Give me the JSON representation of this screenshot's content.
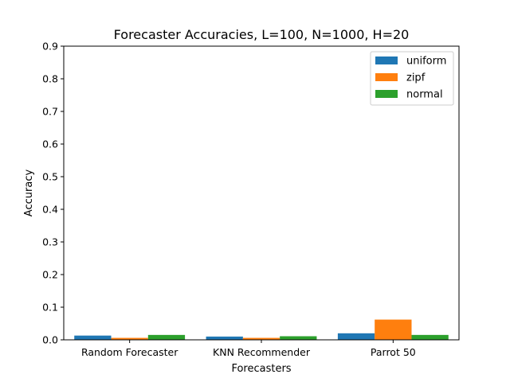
{
  "chart_data": {
    "type": "bar",
    "title": "Forecaster Accuracies, L=100, N=1000, H=20",
    "xlabel": "Forecasters",
    "ylabel": "Accuracy",
    "categories": [
      "Random Forecaster",
      "KNN Recommender",
      "Parrot 50"
    ],
    "series": [
      {
        "name": "uniform",
        "color": "#1f77b4",
        "values": [
          0.013,
          0.01,
          0.02
        ]
      },
      {
        "name": "zipf",
        "color": "#ff7f0e",
        "values": [
          0.006,
          0.006,
          0.062
        ]
      },
      {
        "name": "normal",
        "color": "#2ca02c",
        "values": [
          0.015,
          0.011,
          0.015
        ]
      }
    ],
    "ylim": [
      0,
      0.9
    ],
    "yticks": [
      "0.0",
      "0.1",
      "0.2",
      "0.3",
      "0.4",
      "0.5",
      "0.6",
      "0.7",
      "0.8",
      "0.9"
    ],
    "grid": false,
    "legend": "top-right"
  }
}
